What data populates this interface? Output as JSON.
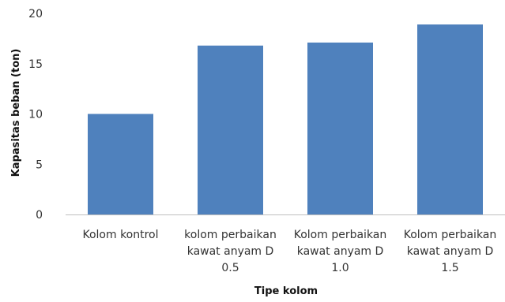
{
  "chart_data": {
    "type": "bar",
    "categories": [
      [
        "Kolom kontrol"
      ],
      [
        "kolom perbaikan",
        "kawat anyam D",
        "0.5"
      ],
      [
        "Kolom perbaikan",
        "kawat anyam D",
        "1.0"
      ],
      [
        "Kolom perbaikan",
        "kawat anyam D",
        "1.5"
      ]
    ],
    "values": [
      10.0,
      16.8,
      17.1,
      18.9
    ],
    "title": "",
    "xlabel": "Tipe kolom",
    "ylabel": "Kapasitas beban (ton)",
    "ylim": [
      0,
      20
    ],
    "yticks": [
      0,
      5,
      10,
      15,
      20
    ],
    "grid": false,
    "legend": "none",
    "bar_color": "#4f81bd",
    "axis_color": "#bfbfbf"
  }
}
